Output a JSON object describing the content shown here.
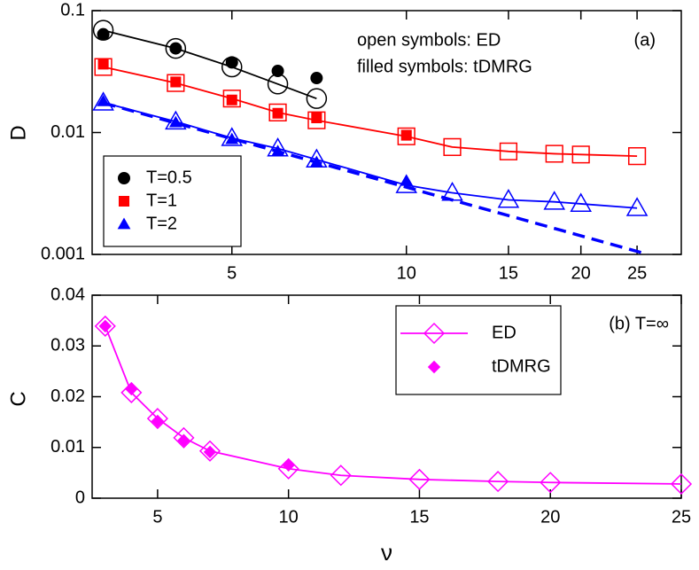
{
  "chart_data": [
    {
      "type": "line",
      "ylabel": "D",
      "xscale": "log",
      "yscale": "log",
      "x": [
        3,
        4,
        5,
        6,
        7,
        10,
        12,
        15,
        18,
        20,
        25
      ],
      "xlim": [
        2.87,
        29.8
      ],
      "xticks": [
        5,
        10,
        15,
        20,
        25
      ],
      "ylim": [
        0.001,
        0.1
      ],
      "yticks": [
        0.1,
        0.01,
        0.001
      ],
      "annotations": [
        "open symbols: ED",
        "filled symbols: tDMRG",
        "(a)"
      ],
      "legend": "lower left",
      "series": [
        {
          "name": "T=0.5",
          "color": "#000000",
          "marker": "circle",
          "ed": [
            0.069,
            0.049,
            0.0345,
            0.025,
            0.019,
            null,
            null,
            null,
            null,
            null,
            null
          ],
          "tdmrg": [
            0.064,
            0.049,
            0.0376,
            0.032,
            0.028,
            null,
            null,
            null,
            null,
            null,
            null
          ]
        },
        {
          "name": "T=1",
          "color": "#ff0000",
          "marker": "square",
          "ed": [
            0.0345,
            0.0255,
            0.019,
            0.0146,
            0.0126,
            0.0093,
            0.0076,
            0.007,
            0.0067,
            0.0066,
            0.0064
          ],
          "tdmrg": [
            0.0364,
            0.026,
            0.0185,
            0.0144,
            0.0132,
            0.0095,
            null,
            null,
            null,
            null,
            null
          ]
        },
        {
          "name": "T=2",
          "color": "#0000ff",
          "marker": "triangle",
          "ed": [
            0.0176,
            0.0123,
            0.009,
            0.0074,
            0.006,
            0.0037,
            0.0032,
            0.0028,
            0.0027,
            0.0026,
            0.0024
          ],
          "tdmrg": [
            0.018,
            0.0121,
            0.0088,
            0.007,
            0.0057,
            0.004,
            null,
            null,
            null,
            null,
            null
          ]
        }
      ],
      "fit": {
        "x": [
          3,
          26.1
        ],
        "values": [
          0.0175,
          0.001
        ],
        "color": "#0000ff",
        "linestyle": "dashed"
      }
    },
    {
      "type": "line",
      "ylabel": "C",
      "xlabel": "ν",
      "xscale": "linear",
      "yscale": "linear",
      "x": [
        3,
        4,
        5,
        6,
        7,
        10,
        12,
        15,
        18,
        20,
        25
      ],
      "xlim": [
        2.5,
        25
      ],
      "xticks": [
        5,
        10,
        15,
        20,
        25
      ],
      "ylim": [
        0,
        0.04
      ],
      "yticks": [
        0,
        0.01,
        0.02,
        0.03,
        0.04
      ],
      "annotations": [
        "(b) T=∞"
      ],
      "legend": "upper right",
      "series": [
        {
          "name": "ED",
          "color": "#ff00ff",
          "marker": "diamond",
          "filled": false,
          "line": true,
          "values": [
            0.0339,
            0.0208,
            0.0157,
            0.0119,
            0.0093,
            0.0058,
            0.0045,
            0.0037,
            0.0033,
            0.0031,
            0.0028
          ]
        },
        {
          "name": "tDMRG",
          "color": "#ff00ff",
          "marker": "diamond",
          "filled": true,
          "line": false,
          "values": [
            0.0339,
            0.0215,
            0.0152,
            0.0114,
            0.0091,
            0.0065,
            null,
            null,
            null,
            null,
            null
          ]
        }
      ]
    }
  ]
}
